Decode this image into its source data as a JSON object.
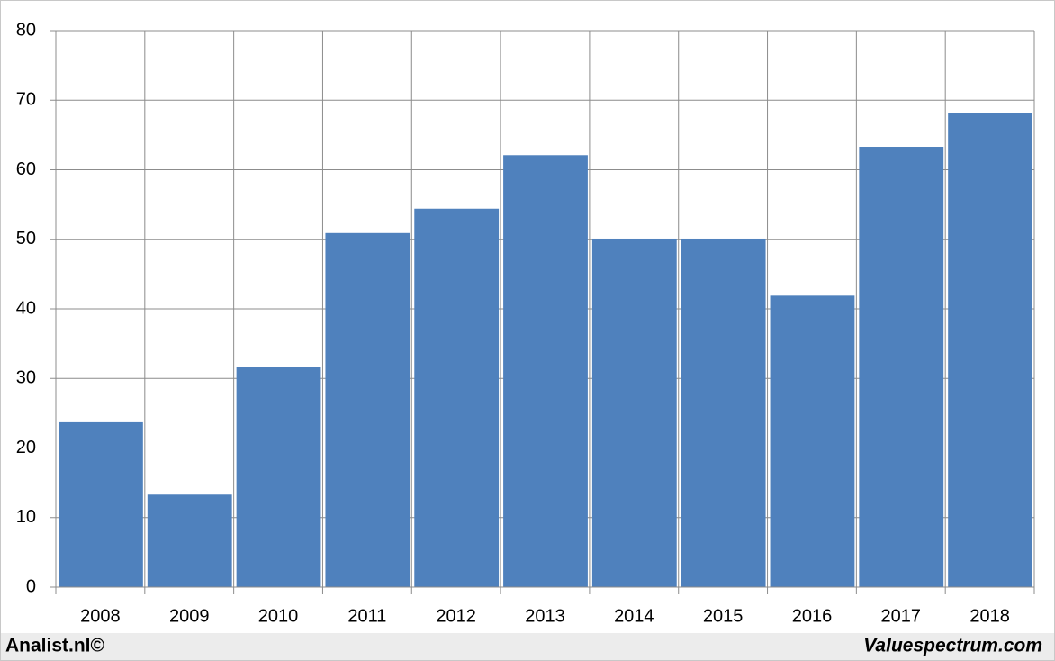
{
  "chart_data": {
    "type": "bar",
    "categories": [
      "2008",
      "2009",
      "2010",
      "2011",
      "2012",
      "2013",
      "2014",
      "2015",
      "2016",
      "2017",
      "2018"
    ],
    "values": [
      23.7,
      13.3,
      31.6,
      50.9,
      54.4,
      62.1,
      50.1,
      50.1,
      41.9,
      63.3,
      68.1
    ],
    "color": "#4f81bd",
    "ylim": [
      0,
      80
    ],
    "yticks": [
      0,
      10,
      20,
      30,
      40,
      50,
      60,
      70,
      80
    ],
    "grid": true
  },
  "footer": {
    "left": "Analist.nl©",
    "right": "Valuespectrum.com"
  }
}
